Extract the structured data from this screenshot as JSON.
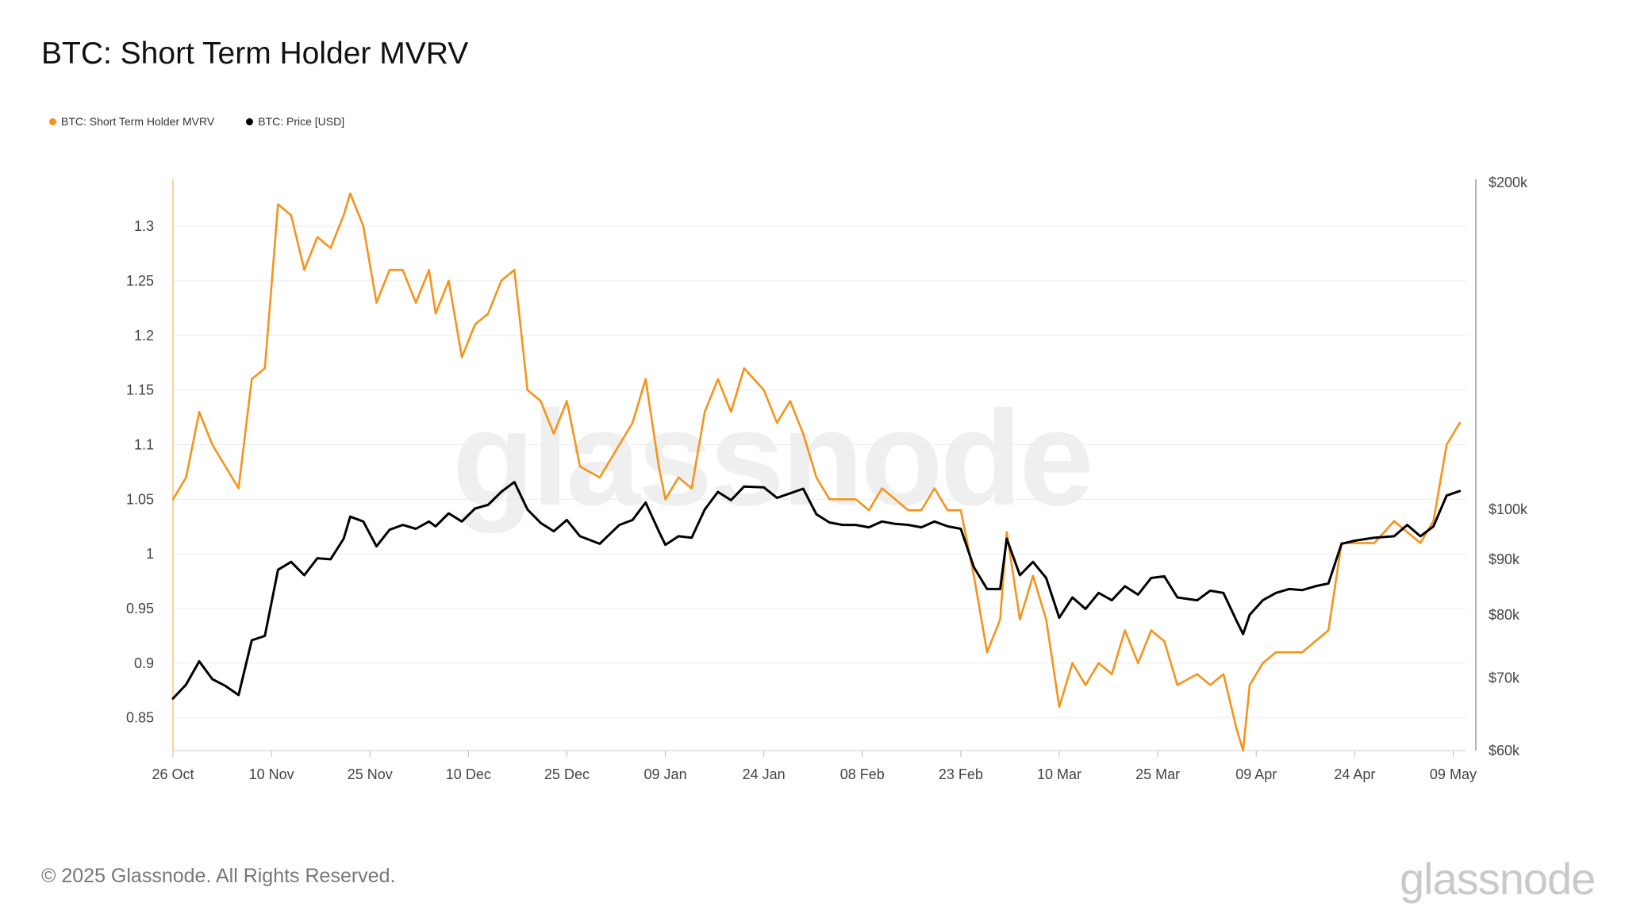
{
  "header": {
    "title": "BTC: Short Term Holder MVRV"
  },
  "legend": [
    {
      "label": "BTC: Short Term Holder MVRV",
      "color": "#f7931a"
    },
    {
      "label": "BTC: Price [USD]",
      "color": "#000000"
    }
  ],
  "watermark": "glassnode",
  "footer": {
    "copyright": "© 2025 Glassnode. All Rights Reserved.",
    "brand": "glassnode"
  },
  "chart_data": {
    "type": "line",
    "title": "BTC: Short Term Holder MVRV",
    "x_start": "2024-10-26",
    "x_end": "2025-05-11",
    "x_tick_labels": [
      "26 Oct",
      "10 Nov",
      "25 Nov",
      "10 Dec",
      "25 Dec",
      "09 Jan",
      "24 Jan",
      "08 Feb",
      "23 Feb",
      "10 Mar",
      "25 Mar",
      "09 Apr",
      "24 Apr",
      "09 May"
    ],
    "left_axis": {
      "ylim": [
        0.82,
        1.34
      ],
      "ticks": [
        "0.85",
        "0.9",
        "0.95",
        "1",
        "1.05",
        "1.1",
        "1.15",
        "1.2",
        "1.25",
        "1.3"
      ]
    },
    "right_axis": {
      "scale": "log",
      "ylim": [
        60000,
        200000
      ],
      "ticks": [
        {
          "label": "$60k",
          "value": 60000
        },
        {
          "label": "$70k",
          "value": 70000
        },
        {
          "label": "$80k",
          "value": 80000
        },
        {
          "label": "$90k",
          "value": 90000
        },
        {
          "label": "$100k",
          "value": 100000
        },
        {
          "label": "$200k",
          "value": 200000
        }
      ]
    },
    "grid": true,
    "legend_position": "top-left",
    "series": [
      {
        "name": "BTC: Short Term Holder MVRV",
        "axis": "left",
        "color": "#f7931a",
        "points": [
          [
            "2024-10-26",
            1.05
          ],
          [
            "2024-10-28",
            1.07
          ],
          [
            "2024-10-30",
            1.13
          ],
          [
            "2024-11-01",
            1.1
          ],
          [
            "2024-11-03",
            1.08
          ],
          [
            "2024-11-05",
            1.06
          ],
          [
            "2024-11-07",
            1.16
          ],
          [
            "2024-11-09",
            1.17
          ],
          [
            "2024-11-11",
            1.32
          ],
          [
            "2024-11-13",
            1.31
          ],
          [
            "2024-11-15",
            1.26
          ],
          [
            "2024-11-17",
            1.29
          ],
          [
            "2024-11-19",
            1.28
          ],
          [
            "2024-11-21",
            1.31
          ],
          [
            "2024-11-22",
            1.33
          ],
          [
            "2024-11-24",
            1.3
          ],
          [
            "2024-11-26",
            1.23
          ],
          [
            "2024-11-28",
            1.26
          ],
          [
            "2024-11-30",
            1.26
          ],
          [
            "2024-12-02",
            1.23
          ],
          [
            "2024-12-04",
            1.26
          ],
          [
            "2024-12-05",
            1.22
          ],
          [
            "2024-12-07",
            1.25
          ],
          [
            "2024-12-09",
            1.18
          ],
          [
            "2024-12-11",
            1.21
          ],
          [
            "2024-12-13",
            1.22
          ],
          [
            "2024-12-15",
            1.25
          ],
          [
            "2024-12-17",
            1.26
          ],
          [
            "2024-12-19",
            1.15
          ],
          [
            "2024-12-21",
            1.14
          ],
          [
            "2024-12-23",
            1.11
          ],
          [
            "2024-12-25",
            1.14
          ],
          [
            "2024-12-27",
            1.08
          ],
          [
            "2024-12-30",
            1.07
          ],
          [
            "2025-01-02",
            1.1
          ],
          [
            "2025-01-04",
            1.12
          ],
          [
            "2025-01-06",
            1.16
          ],
          [
            "2025-01-08",
            1.08
          ],
          [
            "2025-01-09",
            1.05
          ],
          [
            "2025-01-11",
            1.07
          ],
          [
            "2025-01-13",
            1.06
          ],
          [
            "2025-01-15",
            1.13
          ],
          [
            "2025-01-17",
            1.16
          ],
          [
            "2025-01-19",
            1.13
          ],
          [
            "2025-01-21",
            1.17
          ],
          [
            "2025-01-24",
            1.15
          ],
          [
            "2025-01-26",
            1.12
          ],
          [
            "2025-01-28",
            1.14
          ],
          [
            "2025-01-30",
            1.11
          ],
          [
            "2025-02-01",
            1.07
          ],
          [
            "2025-02-03",
            1.05
          ],
          [
            "2025-02-05",
            1.05
          ],
          [
            "2025-02-07",
            1.05
          ],
          [
            "2025-02-09",
            1.04
          ],
          [
            "2025-02-11",
            1.06
          ],
          [
            "2025-02-13",
            1.05
          ],
          [
            "2025-02-15",
            1.04
          ],
          [
            "2025-02-17",
            1.04
          ],
          [
            "2025-02-19",
            1.06
          ],
          [
            "2025-02-21",
            1.04
          ],
          [
            "2025-02-23",
            1.04
          ],
          [
            "2025-02-25",
            0.98
          ],
          [
            "2025-02-27",
            0.91
          ],
          [
            "2025-03-01",
            0.94
          ],
          [
            "2025-03-02",
            1.02
          ],
          [
            "2025-03-04",
            0.94
          ],
          [
            "2025-03-06",
            0.98
          ],
          [
            "2025-03-08",
            0.94
          ],
          [
            "2025-03-10",
            0.86
          ],
          [
            "2025-03-12",
            0.9
          ],
          [
            "2025-03-14",
            0.88
          ],
          [
            "2025-03-16",
            0.9
          ],
          [
            "2025-03-18",
            0.89
          ],
          [
            "2025-03-20",
            0.93
          ],
          [
            "2025-03-22",
            0.9
          ],
          [
            "2025-03-24",
            0.93
          ],
          [
            "2025-03-26",
            0.92
          ],
          [
            "2025-03-28",
            0.88
          ],
          [
            "2025-03-31",
            0.89
          ],
          [
            "2025-04-02",
            0.88
          ],
          [
            "2025-04-04",
            0.89
          ],
          [
            "2025-04-06",
            0.84
          ],
          [
            "2025-04-07",
            0.82
          ],
          [
            "2025-04-08",
            0.88
          ],
          [
            "2025-04-10",
            0.9
          ],
          [
            "2025-04-12",
            0.91
          ],
          [
            "2025-04-14",
            0.91
          ],
          [
            "2025-04-16",
            0.91
          ],
          [
            "2025-04-18",
            0.92
          ],
          [
            "2025-04-20",
            0.93
          ],
          [
            "2025-04-22",
            1.01
          ],
          [
            "2025-04-24",
            1.01
          ],
          [
            "2025-04-27",
            1.01
          ],
          [
            "2025-04-30",
            1.03
          ],
          [
            "2025-05-02",
            1.02
          ],
          [
            "2025-05-04",
            1.01
          ],
          [
            "2025-05-06",
            1.03
          ],
          [
            "2025-05-08",
            1.1
          ],
          [
            "2025-05-10",
            1.12
          ]
        ]
      },
      {
        "name": "BTC: Price [USD]",
        "axis": "right",
        "color": "#000000",
        "points": [
          [
            "2024-10-26",
            67000
          ],
          [
            "2024-10-28",
            69000
          ],
          [
            "2024-10-30",
            72500
          ],
          [
            "2024-11-01",
            69800
          ],
          [
            "2024-11-03",
            68800
          ],
          [
            "2024-11-05",
            67500
          ],
          [
            "2024-11-07",
            75800
          ],
          [
            "2024-11-09",
            76500
          ],
          [
            "2024-11-11",
            88000
          ],
          [
            "2024-11-13",
            89500
          ],
          [
            "2024-11-15",
            87000
          ],
          [
            "2024-11-17",
            90200
          ],
          [
            "2024-11-19",
            90000
          ],
          [
            "2024-11-21",
            94000
          ],
          [
            "2024-11-22",
            98500
          ],
          [
            "2024-11-24",
            97500
          ],
          [
            "2024-11-26",
            92500
          ],
          [
            "2024-11-28",
            95800
          ],
          [
            "2024-11-30",
            96800
          ],
          [
            "2024-12-02",
            96000
          ],
          [
            "2024-12-04",
            97500
          ],
          [
            "2024-12-05",
            96500
          ],
          [
            "2024-12-07",
            99200
          ],
          [
            "2024-12-09",
            97500
          ],
          [
            "2024-12-11",
            100200
          ],
          [
            "2024-12-13",
            101000
          ],
          [
            "2024-12-15",
            103800
          ],
          [
            "2024-12-17",
            106000
          ],
          [
            "2024-12-19",
            100000
          ],
          [
            "2024-12-21",
            97200
          ],
          [
            "2024-12-23",
            95500
          ],
          [
            "2024-12-25",
            97800
          ],
          [
            "2024-12-27",
            94500
          ],
          [
            "2024-12-30",
            93000
          ],
          [
            "2025-01-02",
            96800
          ],
          [
            "2025-01-04",
            97800
          ],
          [
            "2025-01-06",
            101500
          ],
          [
            "2025-01-08",
            95500
          ],
          [
            "2025-01-09",
            92800
          ],
          [
            "2025-01-11",
            94500
          ],
          [
            "2025-01-13",
            94200
          ],
          [
            "2025-01-15",
            100000
          ],
          [
            "2025-01-17",
            103800
          ],
          [
            "2025-01-19",
            102000
          ],
          [
            "2025-01-21",
            105000
          ],
          [
            "2025-01-24",
            104800
          ],
          [
            "2025-01-26",
            102500
          ],
          [
            "2025-01-28",
            103500
          ],
          [
            "2025-01-30",
            104500
          ],
          [
            "2025-02-01",
            99000
          ],
          [
            "2025-02-03",
            97300
          ],
          [
            "2025-02-05",
            96800
          ],
          [
            "2025-02-07",
            96800
          ],
          [
            "2025-02-09",
            96300
          ],
          [
            "2025-02-11",
            97500
          ],
          [
            "2025-02-13",
            97000
          ],
          [
            "2025-02-15",
            96800
          ],
          [
            "2025-02-17",
            96300
          ],
          [
            "2025-02-19",
            97500
          ],
          [
            "2025-02-21",
            96500
          ],
          [
            "2025-02-23",
            96000
          ],
          [
            "2025-02-25",
            88500
          ],
          [
            "2025-02-27",
            84500
          ],
          [
            "2025-03-01",
            84500
          ],
          [
            "2025-03-02",
            94000
          ],
          [
            "2025-03-04",
            87000
          ],
          [
            "2025-03-06",
            89500
          ],
          [
            "2025-03-08",
            86500
          ],
          [
            "2025-03-10",
            79500
          ],
          [
            "2025-03-12",
            83000
          ],
          [
            "2025-03-14",
            81000
          ],
          [
            "2025-03-16",
            83800
          ],
          [
            "2025-03-18",
            82500
          ],
          [
            "2025-03-20",
            85000
          ],
          [
            "2025-03-22",
            83500
          ],
          [
            "2025-03-24",
            86500
          ],
          [
            "2025-03-26",
            86800
          ],
          [
            "2025-03-28",
            83000
          ],
          [
            "2025-03-31",
            82500
          ],
          [
            "2025-04-02",
            84200
          ],
          [
            "2025-04-04",
            83800
          ],
          [
            "2025-04-06",
            79000
          ],
          [
            "2025-04-07",
            76800
          ],
          [
            "2025-04-08",
            80000
          ],
          [
            "2025-04-10",
            82500
          ],
          [
            "2025-04-12",
            83800
          ],
          [
            "2025-04-14",
            84500
          ],
          [
            "2025-04-16",
            84300
          ],
          [
            "2025-04-18",
            85000
          ],
          [
            "2025-04-20",
            85500
          ],
          [
            "2025-04-22",
            93000
          ],
          [
            "2025-04-24",
            93600
          ],
          [
            "2025-04-27",
            94200
          ],
          [
            "2025-04-30",
            94500
          ],
          [
            "2025-05-02",
            96800
          ],
          [
            "2025-05-04",
            94500
          ],
          [
            "2025-05-06",
            96500
          ],
          [
            "2025-05-08",
            103000
          ],
          [
            "2025-05-10",
            104000
          ]
        ]
      }
    ]
  }
}
